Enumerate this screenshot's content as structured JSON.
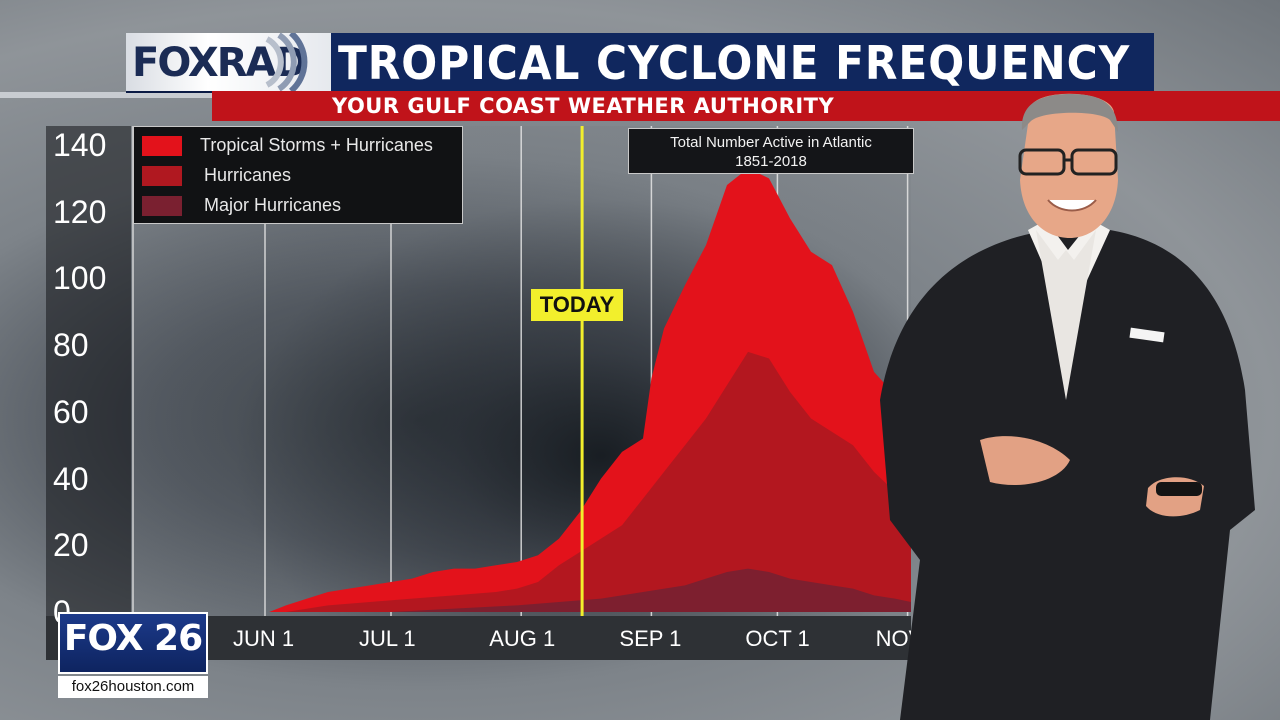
{
  "header": {
    "logo_text": "FOXRAD",
    "title": "TROPICAL CYCLONE FREQUENCY",
    "subtitle": "YOUR GULF COAST WEATHER AUTHORITY"
  },
  "chart_data": {
    "type": "area",
    "title": "Total Number Active in Atlantic",
    "title_line2": "1851-2018",
    "xlabel": "",
    "ylabel": "",
    "ylim": [
      0,
      140
    ],
    "yticks": [
      "140",
      "120",
      "100",
      "80",
      "60",
      "40",
      "20",
      "0"
    ],
    "xtick_labels": [
      "JUN 1",
      "JUL 1",
      "AUG 1",
      "SEP 1",
      "OCT 1",
      "NOV"
    ],
    "grid": true,
    "legend_position": "top-left",
    "annotation": "TODAY",
    "series": [
      {
        "name": "Tropical Storms + Hurricanes",
        "color": "#e3121b",
        "points": [
          [
            -4,
            0
          ],
          [
            1,
            0
          ],
          [
            5,
            2
          ],
          [
            10,
            4
          ],
          [
            15,
            6
          ],
          [
            20,
            7
          ],
          [
            25,
            8
          ],
          [
            30,
            9
          ],
          [
            35,
            10
          ],
          [
            40,
            12
          ],
          [
            45,
            13
          ],
          [
            50,
            13
          ],
          [
            55,
            14
          ],
          [
            60,
            15
          ],
          [
            65,
            17
          ],
          [
            70,
            22
          ],
          [
            75,
            30
          ],
          [
            80,
            40
          ],
          [
            85,
            48
          ],
          [
            90,
            52
          ],
          [
            92,
            70
          ],
          [
            95,
            85
          ],
          [
            100,
            98
          ],
          [
            105,
            110
          ],
          [
            110,
            128
          ],
          [
            115,
            133
          ],
          [
            120,
            130
          ],
          [
            125,
            118
          ],
          [
            130,
            108
          ],
          [
            135,
            104
          ],
          [
            140,
            90
          ],
          [
            145,
            72
          ],
          [
            150,
            65
          ],
          [
            155,
            65
          ],
          [
            160,
            60
          ],
          [
            165,
            45
          ],
          [
            170,
            36
          ],
          [
            175,
            30
          ],
          [
            180,
            24
          ],
          [
            183,
            20
          ],
          [
            185,
            0
          ]
        ]
      },
      {
        "name": "Hurricanes",
        "color": "#b01820",
        "points": [
          [
            -4,
            0
          ],
          [
            5,
            0
          ],
          [
            15,
            2
          ],
          [
            25,
            3
          ],
          [
            35,
            4
          ],
          [
            45,
            5
          ],
          [
            55,
            6
          ],
          [
            60,
            7
          ],
          [
            65,
            9
          ],
          [
            70,
            14
          ],
          [
            75,
            18
          ],
          [
            80,
            22
          ],
          [
            85,
            26
          ],
          [
            90,
            34
          ],
          [
            95,
            42
          ],
          [
            100,
            50
          ],
          [
            105,
            58
          ],
          [
            110,
            68
          ],
          [
            115,
            78
          ],
          [
            120,
            76
          ],
          [
            125,
            66
          ],
          [
            130,
            58
          ],
          [
            135,
            54
          ],
          [
            140,
            50
          ],
          [
            145,
            42
          ],
          [
            150,
            36
          ],
          [
            155,
            34
          ],
          [
            160,
            30
          ],
          [
            165,
            22
          ],
          [
            170,
            16
          ],
          [
            175,
            10
          ],
          [
            180,
            6
          ],
          [
            185,
            0
          ]
        ]
      },
      {
        "name": "Major Hurricanes",
        "color": "#7a2030",
        "points": [
          [
            -4,
            0
          ],
          [
            30,
            0
          ],
          [
            45,
            1
          ],
          [
            60,
            2
          ],
          [
            70,
            3
          ],
          [
            80,
            4
          ],
          [
            90,
            6
          ],
          [
            100,
            8
          ],
          [
            105,
            10
          ],
          [
            110,
            12
          ],
          [
            115,
            13
          ],
          [
            120,
            12
          ],
          [
            125,
            10
          ],
          [
            130,
            9
          ],
          [
            135,
            8
          ],
          [
            140,
            7
          ],
          [
            145,
            5
          ],
          [
            150,
            4
          ],
          [
            160,
            3
          ],
          [
            170,
            2
          ],
          [
            180,
            1
          ],
          [
            185,
            0
          ]
        ]
      }
    ]
  },
  "bug": {
    "label": "FOX 26",
    "url": "fox26houston.com"
  },
  "colors": {
    "title_bg": "#10275e",
    "subtitle_bg": "#c0131a",
    "today_marker": "#f2ef2c"
  }
}
